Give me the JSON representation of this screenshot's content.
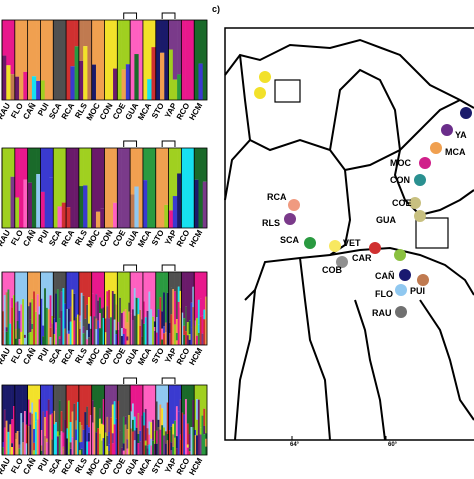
{
  "figure": {
    "panel_label": "c)",
    "populations": [
      "RAU",
      "FLO",
      "CAÑ",
      "PUI",
      "SCA",
      "RCA",
      "RLS",
      "MOC",
      "CON",
      "COE",
      "GUA",
      "MCA",
      "STO",
      "YAP",
      "RCO",
      "HCM"
    ],
    "map_points": [
      {
        "label": null,
        "color": "#f2e12a"
      },
      {
        "label": null,
        "color": "#f2e12a"
      },
      {
        "label": "YA",
        "color": "#1b1b6b"
      },
      {
        "label": null,
        "color": "#6a2d8a"
      },
      {
        "label": "MCA",
        "color": "#f0a050"
      },
      {
        "label": "MOC",
        "color": "#d0208a"
      },
      {
        "label": "CON",
        "color": "#2a9090"
      },
      {
        "label": "COE",
        "color": "#c8c080"
      },
      {
        "label": "GUA",
        "color": "#c8c080"
      },
      {
        "label": "RCA",
        "color": "#f09a80"
      },
      {
        "label": "RLS",
        "color": "#7a3a8a"
      },
      {
        "label": "SCA",
        "color": "#2a9a40"
      },
      {
        "label": "VET",
        "color": "#f8e860"
      },
      {
        "label": "CAR",
        "color": "#d03030"
      },
      {
        "label": null,
        "color": "#8ac040"
      },
      {
        "label": "COB",
        "color": "#909090"
      },
      {
        "label": "CAÑ",
        "color": "#1a1a70"
      },
      {
        "label": "PUI",
        "color": "#c07a50"
      },
      {
        "label": "FLO",
        "color": "#90c8f0"
      },
      {
        "label": "RAU",
        "color": "#707070"
      }
    ],
    "longitude_labels": [
      "64°",
      "60°"
    ]
  }
}
